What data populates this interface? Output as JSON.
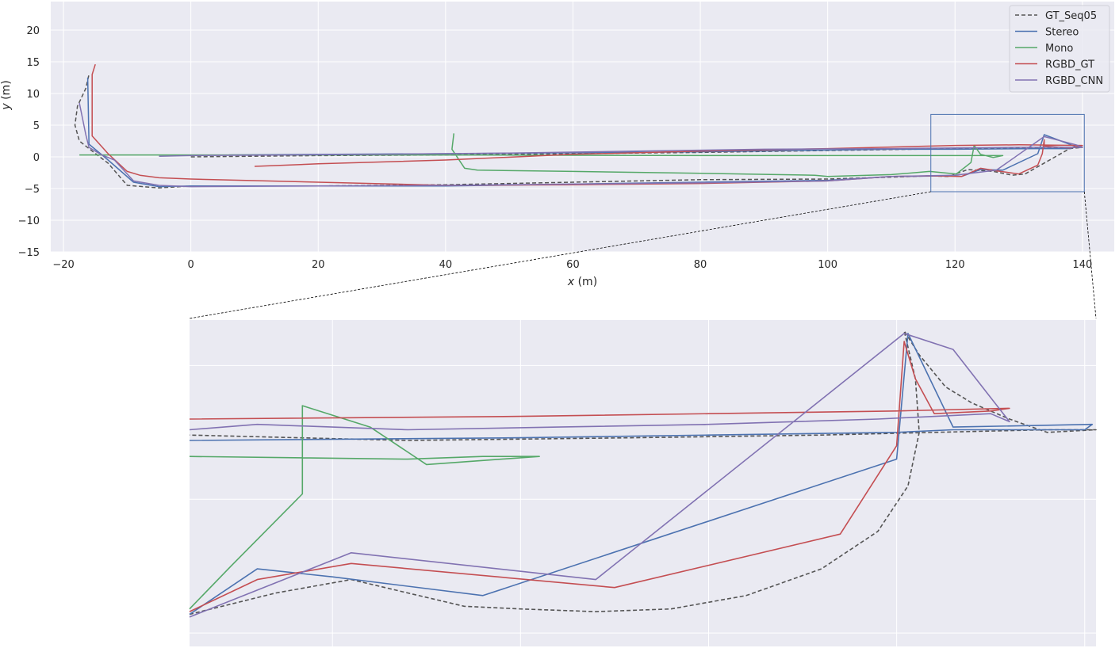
{
  "chart_data": [
    {
      "type": "line",
      "title": "",
      "xlabel": "x (m)",
      "ylabel": "y (m)",
      "xlim": [
        -22,
        145
      ],
      "ylim": [
        -15,
        24.5
      ],
      "xticks": [
        -20,
        0,
        20,
        40,
        60,
        80,
        100,
        120,
        140
      ],
      "yticks": [
        -15,
        -10,
        -5,
        0,
        5,
        10,
        15,
        20
      ],
      "grid": true,
      "legend": "top-right",
      "series": [
        {
          "name": "GT_Seq05",
          "color": "#555555",
          "dash": true,
          "points": [
            [
              0,
              0
            ],
            [
              20,
              0.2
            ],
            [
              40,
              0.3
            ],
            [
              60,
              0.5
            ],
            [
              80,
              0.7
            ],
            [
              100,
              1.0
            ],
            [
              120,
              1.3
            ],
            [
              133,
              1.4
            ],
            [
              140,
              1.5
            ],
            [
              138,
              1.3
            ],
            [
              131,
              -2.7
            ],
            [
              129,
              -2.9
            ],
            [
              126,
              -2.3
            ],
            [
              122,
              -2
            ],
            [
              119,
              -3.1
            ],
            [
              116,
              -3.0
            ],
            [
              110,
              -3.2
            ],
            [
              100,
              -3.5
            ],
            [
              80,
              -3.6
            ],
            [
              60,
              -4.0
            ],
            [
              40,
              -4.4
            ],
            [
              20,
              -4.6
            ],
            [
              0,
              -4.6
            ],
            [
              -5,
              -4.9
            ],
            [
              -10,
              -4.5
            ],
            [
              -13,
              -1
            ],
            [
              -16,
              1.3
            ],
            [
              -17.5,
              2.5
            ],
            [
              -18.2,
              5
            ],
            [
              -17.8,
              8
            ],
            [
              -16.5,
              10.8
            ],
            [
              -16,
              13
            ]
          ]
        },
        {
          "name": "Stereo",
          "color": "#4c72b0",
          "dash": false,
          "points": [
            [
              6,
              0.3
            ],
            [
              40,
              0.5
            ],
            [
              80,
              0.8
            ],
            [
              110,
              1.2
            ],
            [
              120,
              1.2
            ],
            [
              133,
              1.3
            ],
            [
              138,
              1.3
            ],
            [
              139,
              1.6
            ],
            [
              134,
              3.5
            ],
            [
              133,
              0.5
            ],
            [
              127.5,
              -2.1
            ],
            [
              124,
              -2.0
            ],
            [
              121,
              -3.1
            ],
            [
              119,
              -3.0
            ],
            [
              110,
              -3.1
            ],
            [
              100,
              -3.7
            ],
            [
              80,
              -4.0
            ],
            [
              60,
              -4.3
            ],
            [
              40,
              -4.6
            ],
            [
              20,
              -4.6
            ],
            [
              0,
              -4.6
            ],
            [
              -5,
              -4.7
            ],
            [
              -9,
              -4
            ],
            [
              -13,
              -0.5
            ],
            [
              -16,
              2
            ],
            [
              -16.2,
              12.5
            ]
          ]
        },
        {
          "name": "Mono",
          "color": "#55a868",
          "dash": false,
          "points": [
            [
              -17.5,
              0.3
            ],
            [
              0,
              0.3
            ],
            [
              40,
              0.3
            ],
            [
              80,
              0.2
            ],
            [
              110,
              0.2
            ],
            [
              124,
              0.2
            ],
            [
              126.5,
              0.2
            ],
            [
              127.5,
              0.2
            ],
            [
              126,
              -0.1
            ],
            [
              124,
              0.4
            ],
            [
              123,
              1.8
            ],
            [
              122.5,
              -0.9
            ],
            [
              120.2,
              -2.7
            ],
            [
              116,
              -2.3
            ],
            [
              110,
              -2.8
            ],
            [
              100,
              -3.1
            ],
            [
              98,
              -2.9
            ],
            [
              80,
              -2.6
            ],
            [
              60,
              -2.3
            ],
            [
              45,
              -2.1
            ],
            [
              43,
              -1.8
            ],
            [
              41,
              1.2
            ],
            [
              41.3,
              3.7
            ]
          ]
        },
        {
          "name": "RGBD_GT",
          "color": "#c44e52",
          "dash": false,
          "points": [
            [
              10,
              -1.5
            ],
            [
              20,
              -1.1
            ],
            [
              40,
              -0.5
            ],
            [
              60,
              0.4
            ],
            [
              80,
              0.9
            ],
            [
              100,
              1.3
            ],
            [
              120,
              1.8
            ],
            [
              130,
              1.9
            ],
            [
              140,
              1.8
            ],
            [
              138,
              1.4
            ],
            [
              134,
              1.7
            ],
            [
              134,
              2.7
            ],
            [
              133.7,
              0.5
            ],
            [
              133,
              -1.3
            ],
            [
              130,
              -2.7
            ],
            [
              126.5,
              -2.2
            ],
            [
              124,
              -1.8
            ],
            [
              121,
              -3.1
            ],
            [
              116,
              -3.0
            ],
            [
              110,
              -3.1
            ],
            [
              100,
              -3.8
            ],
            [
              80,
              -4.2
            ],
            [
              60,
              -4.4
            ],
            [
              40,
              -4.5
            ],
            [
              20,
              -4.0
            ],
            [
              0,
              -3.5
            ],
            [
              -5,
              -3.3
            ],
            [
              -8,
              -2.9
            ],
            [
              -10,
              -2.3
            ],
            [
              -13,
              0.5
            ],
            [
              -15.5,
              3.3
            ],
            [
              -15.5,
              13
            ],
            [
              -15,
              14.6
            ]
          ]
        },
        {
          "name": "RGBD_CNN",
          "color": "#8172b2",
          "dash": false,
          "points": [
            [
              -17.5,
              8.5
            ],
            [
              -16.5,
              3.5
            ],
            [
              -16,
              1.5
            ],
            [
              -14,
              0.3
            ],
            [
              -12,
              -0.5
            ],
            [
              -9,
              -3.8
            ],
            [
              -5,
              -4.5
            ],
            [
              0,
              -4.7
            ],
            [
              20,
              -4.6
            ],
            [
              40,
              -4.5
            ],
            [
              60,
              -4.3
            ],
            [
              80,
              -4.1
            ],
            [
              100,
              -3.8
            ],
            [
              110,
              -3.1
            ],
            [
              120,
              -2.9
            ],
            [
              126.5,
              -2.1
            ],
            [
              134,
              3.2
            ],
            [
              139,
              1.9
            ],
            [
              140,
              1.5
            ],
            [
              130,
              1.5
            ],
            [
              110,
              1.3
            ],
            [
              90,
              1.2
            ],
            [
              70,
              0.9
            ],
            [
              50,
              0.6
            ],
            [
              30,
              0.4
            ],
            [
              0,
              0.2
            ],
            [
              -5,
              0.1
            ]
          ]
        }
      ]
    },
    {
      "type": "line",
      "title": "",
      "xlim": [
        116.2,
        140.3
      ],
      "ylim": [
        -5.5,
        6.7
      ],
      "grid": true,
      "series_ref": "same as main chart, zoomed view",
      "series": [
        {
          "name": "GT_Seq05",
          "color": "#555555",
          "dash": true,
          "points": [
            [
              116.2,
              -4.3
            ],
            [
              118.5,
              -3.5
            ],
            [
              120.5,
              -3.0
            ],
            [
              122,
              -3.5
            ],
            [
              123.5,
              -4.0
            ],
            [
              125,
              -4.1
            ],
            [
              127,
              -4.2
            ],
            [
              129,
              -4.1
            ],
            [
              131,
              -3.6
            ],
            [
              133,
              -2.6
            ],
            [
              134.5,
              -1.2
            ],
            [
              135.3,
              0.5
            ],
            [
              135.6,
              2.5
            ],
            [
              135.5,
              4.5
            ],
            [
              135.2,
              6.3
            ],
            [
              135.6,
              5.4
            ],
            [
              136.3,
              4.2
            ],
            [
              137,
              3.6
            ],
            [
              138,
              3.0
            ],
            [
              139,
              2.5
            ],
            [
              140.3,
              2.6
            ],
            [
              139,
              2.6
            ],
            [
              136,
              2.5
            ],
            [
              133,
              2.4
            ],
            [
              128,
              2.3
            ],
            [
              122,
              2.2
            ],
            [
              116.2,
              2.4
            ]
          ]
        },
        {
          "name": "Stereo",
          "color": "#4c72b0",
          "dash": false,
          "points": [
            [
              116.2,
              2.2
            ],
            [
              125,
              2.3
            ],
            [
              130,
              2.4
            ],
            [
              135,
              2.5
            ],
            [
              136.5,
              2.6
            ],
            [
              140,
              2.6
            ],
            [
              140.2,
              2.8
            ],
            [
              136.5,
              2.7
            ],
            [
              135.3,
              6.2
            ],
            [
              135,
              1.5
            ],
            [
              124,
              -3.6
            ],
            [
              120,
              -2.9
            ],
            [
              118,
              -2.6
            ],
            [
              116.2,
              -4.3
            ]
          ]
        },
        {
          "name": "Mono",
          "color": "#55a868",
          "dash": false,
          "points": [
            [
              116.2,
              1.6
            ],
            [
              122,
              1.5
            ],
            [
              124,
              1.6
            ],
            [
              125.5,
              1.6
            ],
            [
              122.5,
              1.3
            ],
            [
              121,
              2.7
            ],
            [
              119.2,
              3.5
            ],
            [
              119.2,
              0.2
            ],
            [
              117.3,
              -2.5
            ],
            [
              116.2,
              -4.1
            ]
          ]
        },
        {
          "name": "RGBD_GT",
          "color": "#c44e52",
          "dash": false,
          "points": [
            [
              116.2,
              3.0
            ],
            [
              125,
              3.1
            ],
            [
              130,
              3.2
            ],
            [
              135,
              3.3
            ],
            [
              138,
              3.4
            ],
            [
              137.5,
              3.3
            ],
            [
              136,
              3.2
            ],
            [
              135.5,
              4.5
            ],
            [
              135.2,
              5.9
            ],
            [
              135,
              2.0
            ],
            [
              133.5,
              -1.3
            ],
            [
              127.5,
              -3.3
            ],
            [
              120.5,
              -2.4
            ],
            [
              118,
              -3.0
            ],
            [
              116.2,
              -4.2
            ]
          ]
        },
        {
          "name": "RGBD_CNN",
          "color": "#8172b2",
          "dash": false,
          "points": [
            [
              116.2,
              2.6
            ],
            [
              118,
              2.8
            ],
            [
              122,
              2.6
            ],
            [
              126,
              2.7
            ],
            [
              130,
              2.8
            ],
            [
              134.5,
              3.0
            ],
            [
              137.5,
              3.2
            ],
            [
              138,
              2.9
            ],
            [
              136.5,
              5.6
            ],
            [
              135.2,
              6.2
            ],
            [
              127,
              -3.0
            ],
            [
              120.5,
              -2.0
            ],
            [
              116.2,
              -4.4
            ]
          ]
        }
      ]
    }
  ]
}
